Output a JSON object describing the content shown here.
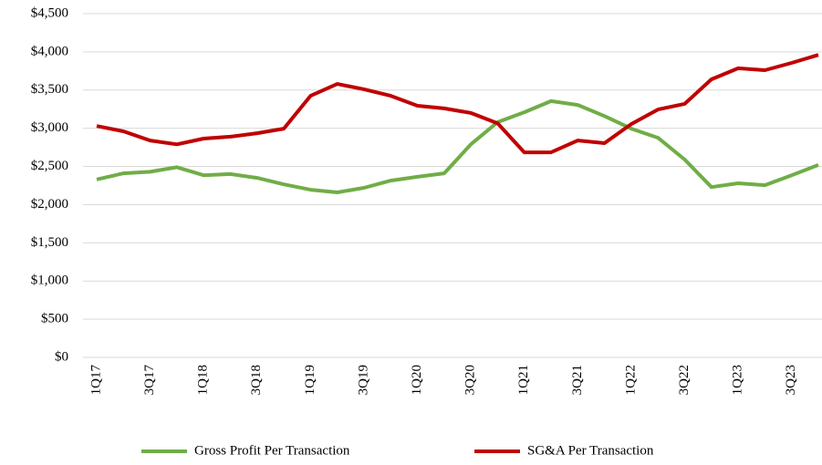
{
  "chart_data": {
    "type": "line",
    "categories": [
      "1Q17",
      null,
      "3Q17",
      null,
      "1Q18",
      null,
      "3Q18",
      null,
      "1Q19",
      null,
      "3Q19",
      null,
      "1Q20",
      null,
      "3Q20",
      null,
      "1Q21",
      null,
      "3Q21",
      null,
      "1Q22",
      null,
      "3Q22",
      null,
      "1Q23",
      null,
      "3Q23",
      null
    ],
    "series": [
      {
        "name": "Gross Profit Per Transaction",
        "color": "#70ad47",
        "values": [
          2330,
          2410,
          2430,
          2490,
          2385,
          2400,
          2350,
          2265,
          2195,
          2160,
          2220,
          2315,
          2365,
          2410,
          2790,
          3080,
          3210,
          3355,
          3305,
          3160,
          2995,
          2875,
          2590,
          2230,
          2280,
          2255,
          2385,
          2520
        ]
      },
      {
        "name": "SG&A Per Transaction",
        "color": "#c00000",
        "values": [
          3030,
          2960,
          2840,
          2790,
          2865,
          2890,
          2935,
          2995,
          3425,
          3580,
          3510,
          3425,
          3295,
          3260,
          3200,
          3065,
          2685,
          2685,
          2840,
          2805,
          3055,
          3245,
          3320,
          3640,
          3785,
          3760,
          3855,
          3960
        ]
      }
    ],
    "ylim": [
      0,
      4500
    ],
    "yticks": [
      {
        "value": 0,
        "label": "$0"
      },
      {
        "value": 500,
        "label": "$500"
      },
      {
        "value": 1000,
        "label": "$1,000"
      },
      {
        "value": 1500,
        "label": "$1,500"
      },
      {
        "value": 2000,
        "label": "$2,000"
      },
      {
        "value": 2500,
        "label": "$2,500"
      },
      {
        "value": 3000,
        "label": "$3,000"
      },
      {
        "value": 3500,
        "label": "$3,500"
      },
      {
        "value": 4000,
        "label": "$4,000"
      },
      {
        "value": 4500,
        "label": "$4,500"
      }
    ],
    "grid": true,
    "legend": "bottom"
  }
}
